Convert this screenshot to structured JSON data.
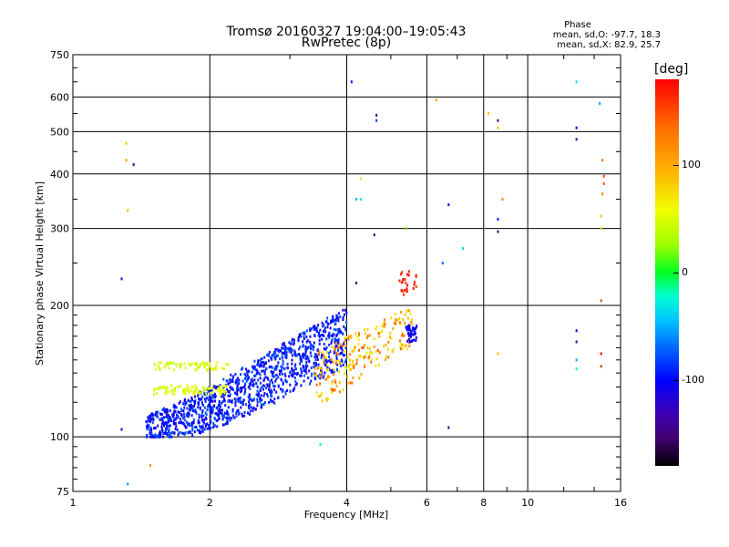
{
  "header": {
    "title_line1": "Tromsø 20160327 19:04:00–19:05:43",
    "title_line2": "RwPretec (8p)",
    "phase_label": "Phase",
    "phase_o": "mean, sd,O: -97.7, 18.3",
    "phase_x": "mean, sd,X:  82.9, 25.7"
  },
  "colorbar": {
    "label": "[deg]",
    "ticks": [
      {
        "label": "100",
        "value": 100
      },
      {
        "label": "0",
        "value": 0
      },
      {
        "label": "-100",
        "value": -100
      }
    ],
    "range": [
      -180,
      180
    ]
  },
  "chart_data": {
    "type": "scatter",
    "xlabel": "Frequency [MHz]",
    "ylabel": "Stationary phase Virtual Height [km]",
    "xscale": "log",
    "yscale": "log",
    "xlim": [
      1,
      16
    ],
    "ylim": [
      75,
      750
    ],
    "xticks": [
      1,
      2,
      4,
      6,
      8,
      10,
      16
    ],
    "yticks": [
      75,
      100,
      200,
      300,
      400,
      500,
      600,
      750
    ],
    "grid": true,
    "colorscale": "phase in degrees (rainbow)",
    "clusters": [
      {
        "x_range": [
          1.45,
          4.0
        ],
        "y_range": [
          100,
          190
        ],
        "phase": -100
      },
      {
        "x_range": [
          1.5,
          2.2
        ],
        "y_range": [
          122,
          150
        ],
        "phase": 55
      },
      {
        "x_range": [
          3.4,
          5.6
        ],
        "y_range": [
          120,
          200
        ],
        "phase": 80
      }
    ],
    "points": [
      [
        1.28,
        104,
        -110
      ],
      [
        1.32,
        78,
        -60
      ],
      [
        1.36,
        420,
        -150
      ],
      [
        1.28,
        230,
        -100
      ],
      [
        1.31,
        470,
        90
      ],
      [
        1.31,
        430,
        110
      ],
      [
        1.32,
        330,
        100
      ],
      [
        1.48,
        86,
        120
      ],
      [
        4.1,
        650,
        -100
      ],
      [
        4.65,
        545,
        -150
      ],
      [
        4.65,
        530,
        -90
      ],
      [
        4.3,
        390,
        40
      ],
      [
        4.2,
        350,
        -60
      ],
      [
        4.3,
        350,
        -30
      ],
      [
        4.6,
        290,
        -160
      ],
      [
        4.2,
        225,
        -160
      ],
      [
        6.3,
        590,
        110
      ],
      [
        6.7,
        340,
        -100
      ],
      [
        6.5,
        250,
        -80
      ],
      [
        7.2,
        270,
        -40
      ],
      [
        8.2,
        550,
        100
      ],
      [
        8.6,
        530,
        -160
      ],
      [
        8.6,
        510,
        100
      ],
      [
        8.8,
        350,
        120
      ],
      [
        8.6,
        315,
        -100
      ],
      [
        8.6,
        295,
        -160
      ],
      [
        12.8,
        650,
        -40
      ],
      [
        12.8,
        510,
        -110
      ],
      [
        12.8,
        480,
        -150
      ],
      [
        14.4,
        580,
        -60
      ],
      [
        14.6,
        430,
        130
      ],
      [
        14.7,
        395,
        150
      ],
      [
        14.7,
        380,
        140
      ],
      [
        14.6,
        360,
        120
      ],
      [
        14.5,
        320,
        100
      ],
      [
        14.5,
        300,
        40
      ],
      [
        14.5,
        205,
        150
      ],
      [
        12.8,
        175,
        -110
      ],
      [
        12.8,
        165,
        -160
      ],
      [
        12.8,
        150,
        -60
      ],
      [
        12.8,
        143,
        -20
      ],
      [
        14.5,
        155,
        180
      ],
      [
        14.5,
        145,
        160
      ],
      [
        8.6,
        155,
        100
      ],
      [
        6.7,
        105,
        -160
      ],
      [
        3.5,
        96,
        -20
      ],
      [
        5.4,
        300,
        20
      ]
    ]
  }
}
